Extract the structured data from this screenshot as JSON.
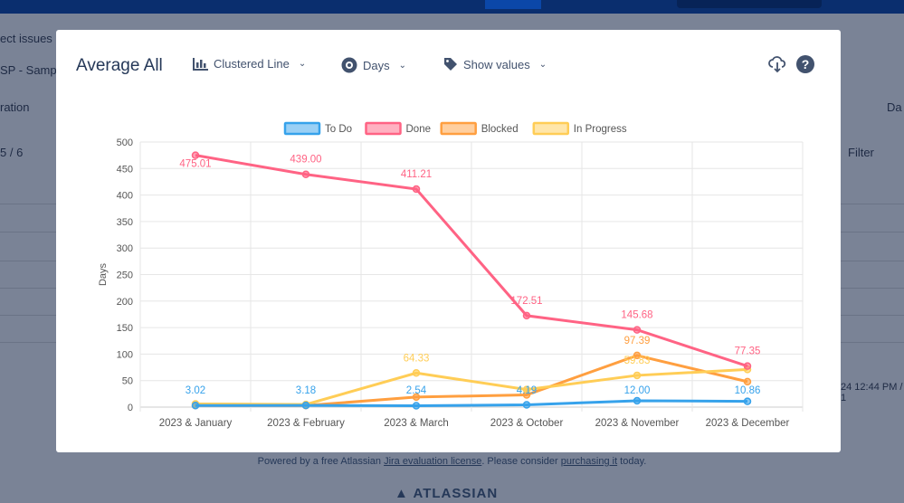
{
  "background": {
    "snippets": [
      "ect issues u",
      "SP - Sample",
      "ration",
      "5 / 6",
      "Filter",
      "Da",
      "24 12:44 PM / 1"
    ]
  },
  "modal": {
    "title": "Average All",
    "chart_type_label": "Clustered Line",
    "unit_label": "Days",
    "values_label": "Show values",
    "icons": [
      "bar-chart-icon",
      "eye-icon",
      "tag-icon",
      "cloud-download-icon",
      "help-icon"
    ]
  },
  "footer": {
    "prefix": "Powered by a free Atlassian ",
    "link1": "Jira evaluation license",
    "middle": ". Please consider ",
    "link2": "purchasing it",
    "suffix": " today.",
    "logo": "ATLASSIAN"
  },
  "chart_data": {
    "type": "line",
    "categories": [
      "2023 & January",
      "2023 & February",
      "2023 & March",
      "2023 & October",
      "2023 & November",
      "2023 & December"
    ],
    "ylabel": "Days",
    "ylim": [
      0,
      500
    ],
    "yticks": [
      0,
      50,
      100,
      150,
      200,
      250,
      300,
      350,
      400,
      450,
      500
    ],
    "grid": true,
    "legend": "top",
    "series": [
      {
        "name": "To Do",
        "color": "#36a2eb",
        "values": [
          3.02,
          3.18,
          2.54,
          4.19,
          12.0,
          10.86
        ],
        "labels": [
          "3.02",
          "3.18",
          "2.54",
          "4.19",
          "12.00",
          "10.86"
        ]
      },
      {
        "name": "Done",
        "color": "#ff6384",
        "values": [
          475.01,
          439.0,
          411.21,
          172.51,
          145.68,
          77.35
        ],
        "labels": [
          "475.01",
          "439.00",
          "411.21",
          "172.51",
          "145.68",
          "77.35"
        ]
      },
      {
        "name": "Blocked",
        "color": "#ff9f40",
        "values": [
          3,
          3,
          19,
          23,
          97.39,
          48
        ],
        "labels": [
          "",
          "",
          "",
          "",
          "97.39",
          ""
        ]
      },
      {
        "name": "In Progress",
        "color": "#ffcd56",
        "values": [
          6,
          5,
          64.33,
          33,
          59.83,
          71
        ],
        "labels": [
          "",
          "",
          "64.33",
          "",
          "59.83",
          ""
        ]
      }
    ]
  }
}
